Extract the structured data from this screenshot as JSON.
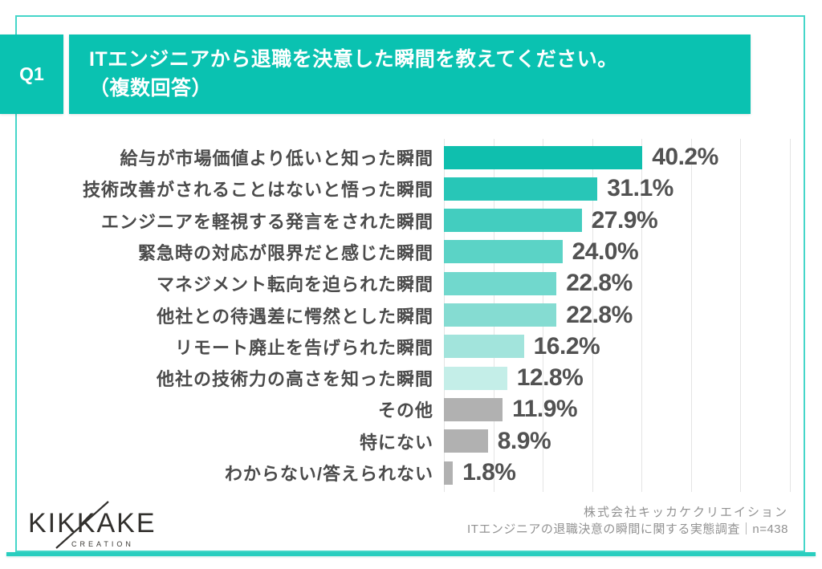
{
  "header": {
    "q_label": "Q1",
    "title_line1": "ITエンジニアから退職を決意した瞬間を教えてください。",
    "title_line2": "（複数回答）"
  },
  "chart_data": {
    "type": "bar",
    "orientation": "horizontal",
    "title": "ITエンジニアから退職を決意した瞬間（複数回答）",
    "categories": [
      "給与が市場価値より低いと知った瞬間",
      "技術改善がされることはないと悟った瞬間",
      "エンジニアを軽視する発言をされた瞬間",
      "緊急時の対応が限界だと感じた瞬間",
      "マネジメント転向を迫られた瞬間",
      "他社との待遇差に愕然とした瞬間",
      "リモート廃止を告げられた瞬間",
      "他社の技術力の高さを知った瞬間",
      "その他",
      "特にない",
      "わからない/答えられない"
    ],
    "values": [
      40.2,
      31.1,
      27.9,
      24.0,
      22.8,
      22.8,
      16.2,
      12.8,
      11.9,
      8.9,
      1.8
    ],
    "value_labels": [
      "40.2%",
      "31.1%",
      "27.9%",
      "24.0%",
      "22.8%",
      "22.8%",
      "16.2%",
      "12.8%",
      "11.9%",
      "8.9%",
      "1.8%"
    ],
    "unit": "%",
    "bar_colors": [
      "#0FBFAE",
      "#28C6B7",
      "#43CDBF",
      "#5BD3C6",
      "#71D8CD",
      "#85DCD2",
      "#A2E4DC",
      "#C4EEE8",
      "#B1B1B1",
      "#B1B1B1",
      "#B1B1B1"
    ],
    "axis": {
      "xlim": [
        0,
        70
      ],
      "gridline_step": 10,
      "grid": true,
      "tick_labels_visible": false
    },
    "legend": "none"
  },
  "logo": {
    "name": "KIKKAKE",
    "subtext": "CREATION"
  },
  "footer": {
    "line1": "株式会社キッカケクリエイション",
    "line2": "ITエンジニアの退職決意の瞬間に関する実態調査｜n=438"
  },
  "colors": {
    "accent_teal": "#0AC2B1",
    "frame_teal": "#45D6C9",
    "bottom_bar_teal": "#29CEBF",
    "gray_bar": "#B1B1B1",
    "category_text": "#4B4B4B",
    "value_text": "#525252",
    "footer_text": "#929292",
    "gridline": "#E4E4E4"
  }
}
